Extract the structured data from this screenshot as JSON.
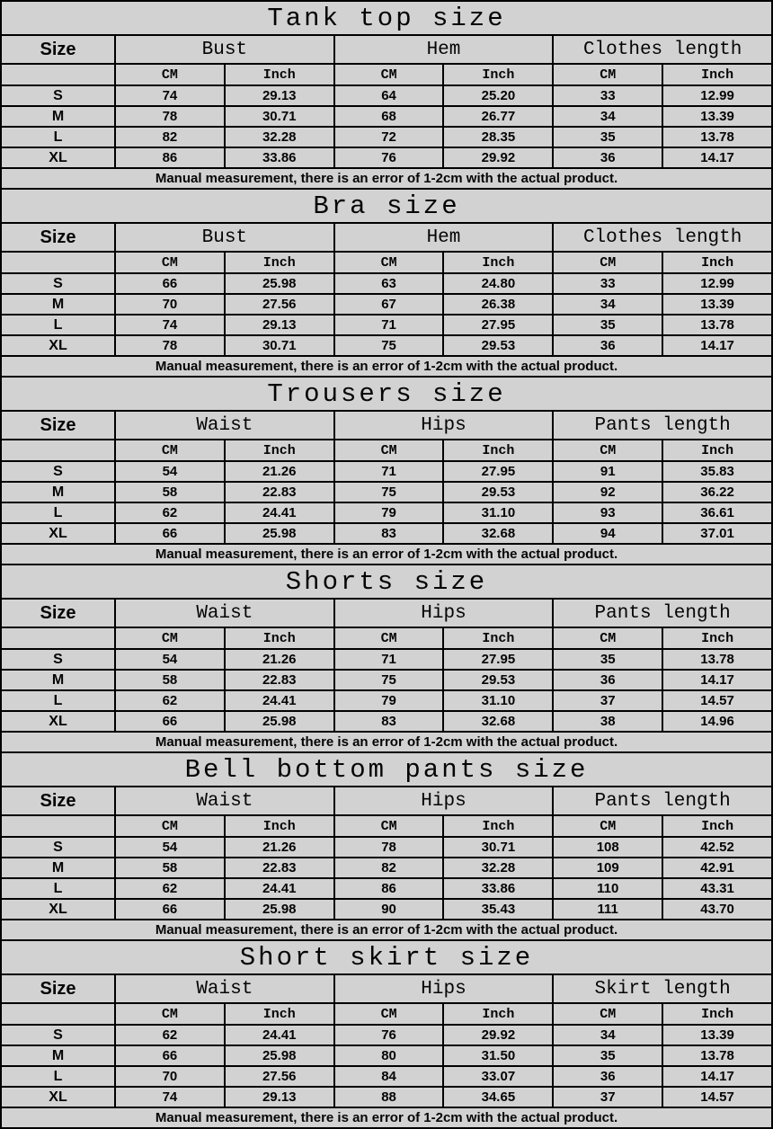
{
  "page": {
    "background_color": "#d2d2d2",
    "grid_color": "#000000",
    "text_color": "#050505"
  },
  "common": {
    "size_label": "Size",
    "cm": "CM",
    "inch": "Inch",
    "note": "Manual measurement, there is an error of 1-2cm with the actual product."
  },
  "tables": [
    {
      "title": "Tank top size",
      "groups": [
        "Bust",
        "Hem",
        "Clothes length"
      ],
      "rows": [
        {
          "size": "S",
          "values": [
            "74",
            "29.13",
            "64",
            "25.20",
            "33",
            "12.99"
          ]
        },
        {
          "size": "M",
          "values": [
            "78",
            "30.71",
            "68",
            "26.77",
            "34",
            "13.39"
          ]
        },
        {
          "size": "L",
          "values": [
            "82",
            "32.28",
            "72",
            "28.35",
            "35",
            "13.78"
          ]
        },
        {
          "size": "XL",
          "values": [
            "86",
            "33.86",
            "76",
            "29.92",
            "36",
            "14.17"
          ]
        }
      ]
    },
    {
      "title": "Bra size",
      "groups": [
        "Bust",
        "Hem",
        "Clothes length"
      ],
      "rows": [
        {
          "size": "S",
          "values": [
            "66",
            "25.98",
            "63",
            "24.80",
            "33",
            "12.99"
          ]
        },
        {
          "size": "M",
          "values": [
            "70",
            "27.56",
            "67",
            "26.38",
            "34",
            "13.39"
          ]
        },
        {
          "size": "L",
          "values": [
            "74",
            "29.13",
            "71",
            "27.95",
            "35",
            "13.78"
          ]
        },
        {
          "size": "XL",
          "values": [
            "78",
            "30.71",
            "75",
            "29.53",
            "36",
            "14.17"
          ]
        }
      ]
    },
    {
      "title": "Trousers size",
      "groups": [
        "Waist",
        "Hips",
        "Pants length"
      ],
      "rows": [
        {
          "size": "S",
          "values": [
            "54",
            "21.26",
            "71",
            "27.95",
            "91",
            "35.83"
          ]
        },
        {
          "size": "M",
          "values": [
            "58",
            "22.83",
            "75",
            "29.53",
            "92",
            "36.22"
          ]
        },
        {
          "size": "L",
          "values": [
            "62",
            "24.41",
            "79",
            "31.10",
            "93",
            "36.61"
          ]
        },
        {
          "size": "XL",
          "values": [
            "66",
            "25.98",
            "83",
            "32.68",
            "94",
            "37.01"
          ]
        }
      ]
    },
    {
      "title": "Shorts size",
      "groups": [
        "Waist",
        "Hips",
        "Pants length"
      ],
      "rows": [
        {
          "size": "S",
          "values": [
            "54",
            "21.26",
            "71",
            "27.95",
            "35",
            "13.78"
          ]
        },
        {
          "size": "M",
          "values": [
            "58",
            "22.83",
            "75",
            "29.53",
            "36",
            "14.17"
          ]
        },
        {
          "size": "L",
          "values": [
            "62",
            "24.41",
            "79",
            "31.10",
            "37",
            "14.57"
          ]
        },
        {
          "size": "XL",
          "values": [
            "66",
            "25.98",
            "83",
            "32.68",
            "38",
            "14.96"
          ]
        }
      ]
    },
    {
      "title": "Bell bottom pants size",
      "groups": [
        "Waist",
        "Hips",
        "Pants length"
      ],
      "rows": [
        {
          "size": "S",
          "values": [
            "54",
            "21.26",
            "78",
            "30.71",
            "108",
            "42.52"
          ]
        },
        {
          "size": "M",
          "values": [
            "58",
            "22.83",
            "82",
            "32.28",
            "109",
            "42.91"
          ]
        },
        {
          "size": "L",
          "values": [
            "62",
            "24.41",
            "86",
            "33.86",
            "110",
            "43.31"
          ]
        },
        {
          "size": "XL",
          "values": [
            "66",
            "25.98",
            "90",
            "35.43",
            "111",
            "43.70"
          ]
        }
      ]
    },
    {
      "title": "Short skirt size",
      "groups": [
        "Waist",
        "Hips",
        "Skirt length"
      ],
      "rows": [
        {
          "size": "S",
          "values": [
            "62",
            "24.41",
            "76",
            "29.92",
            "34",
            "13.39"
          ]
        },
        {
          "size": "M",
          "values": [
            "66",
            "25.98",
            "80",
            "31.50",
            "35",
            "13.78"
          ]
        },
        {
          "size": "L",
          "values": [
            "70",
            "27.56",
            "84",
            "33.07",
            "36",
            "14.17"
          ]
        },
        {
          "size": "XL",
          "values": [
            "74",
            "29.13",
            "88",
            "34.65",
            "37",
            "14.57"
          ]
        }
      ]
    }
  ]
}
